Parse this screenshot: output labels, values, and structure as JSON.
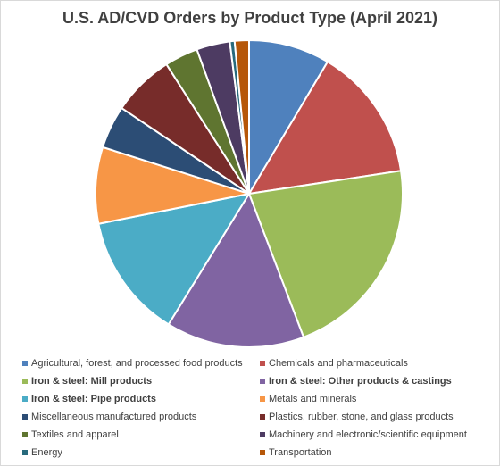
{
  "chart_data": {
    "type": "pie",
    "title": "U.S. AD/CVD Orders by Product Type (April 2021)",
    "legend_position": "bottom",
    "slices": [
      {
        "name": "Agricultural, forest,  and processed food products",
        "value": 8.5,
        "color": "#4f81bd",
        "bold": false
      },
      {
        "name": "Chemicals and pharmaceuticals",
        "value": 14.0,
        "color": "#c0504d",
        "bold": false
      },
      {
        "name": "Iron & steel:  Mill products",
        "value": 21.5,
        "color": "#9bbb59",
        "bold": true
      },
      {
        "name": "Iron & steel:  Other products & castings",
        "value": 14.5,
        "color": "#8064a2",
        "bold": true
      },
      {
        "name": "Iron & steel:  Pipe products",
        "value": 13.0,
        "color": "#4bacc6",
        "bold": true
      },
      {
        "name": "Metals and minerals",
        "value": 8.0,
        "color": "#f79646",
        "bold": false
      },
      {
        "name": "Miscellaneous manufactured products",
        "value": 4.5,
        "color": "#2c4d75",
        "bold": false
      },
      {
        "name": "Plastics, rubber, stone, and glass products",
        "value": 6.5,
        "color": "#772c2a",
        "bold": false
      },
      {
        "name": "Textiles and apparel",
        "value": 3.5,
        "color": "#5f7530",
        "bold": false
      },
      {
        "name": "Machinery and electronic/scientific equipment",
        "value": 3.5,
        "color": "#4d3b62",
        "bold": false
      },
      {
        "name": "Energy",
        "value": 0.5,
        "color": "#276a7c",
        "bold": false
      },
      {
        "name": "Transportation",
        "value": 1.5,
        "color": "#b65708",
        "bold": false
      }
    ]
  }
}
